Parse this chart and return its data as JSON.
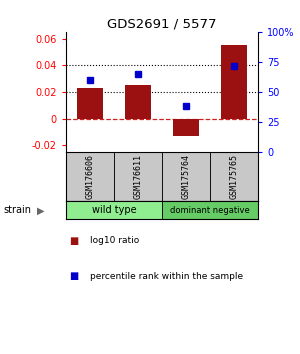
{
  "title": "GDS2691 / 5577",
  "samples": [
    "GSM176606",
    "GSM176611",
    "GSM175764",
    "GSM175765"
  ],
  "log10_ratio": [
    0.023,
    0.025,
    -0.013,
    0.055
  ],
  "percentile_rank_pct": [
    60,
    65,
    38,
    72
  ],
  "groups": [
    {
      "label": "wild type",
      "samples": [
        0,
        1
      ],
      "color": "#90EE90"
    },
    {
      "label": "dominant negative",
      "samples": [
        2,
        3
      ],
      "color": "#66CC66"
    }
  ],
  "ylim_left": [
    -0.025,
    0.065
  ],
  "ylim_right": [
    0,
    100
  ],
  "yticks_left": [
    -0.02,
    0,
    0.02,
    0.04,
    0.06
  ],
  "yticks_right": [
    0,
    25,
    50,
    75,
    100
  ],
  "ytick_labels_right": [
    "0",
    "25",
    "50",
    "75",
    "100%"
  ],
  "hlines_dotted": [
    0.02,
    0.04
  ],
  "bar_color": "#9B1010",
  "dot_color": "#0000CC",
  "zero_line_color": "#CC2222",
  "bar_width": 0.55,
  "strain_label": "strain",
  "legend_items": [
    {
      "color": "#9B1010",
      "label": "log10 ratio"
    },
    {
      "color": "#0000CC",
      "label": "percentile rank within the sample"
    }
  ],
  "gray_box_color": "#C8C8C8",
  "wild_type_color": "#90EE90",
  "dominant_neg_color": "#66CC66"
}
